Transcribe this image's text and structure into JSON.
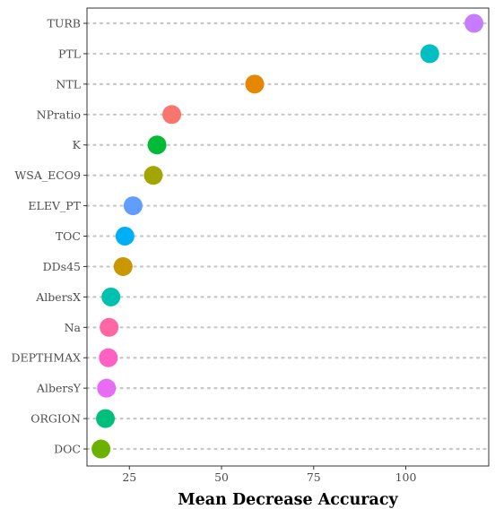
{
  "chart_data": {
    "type": "scatter",
    "xlabel": "Mean Decrease Accuracy",
    "ylabel": "",
    "title": "",
    "xlim": [
      13.5,
      122.5
    ],
    "x_ticks": [
      25,
      50,
      75,
      100
    ],
    "x_tick_labels": [
      "25",
      "50",
      "75",
      "100"
    ],
    "categories": [
      "TURB",
      "PTL",
      "NTL",
      "NPratio",
      "K",
      "WSA_ECO9",
      "ELEV_PT",
      "TOC",
      "DDs45",
      "AlbersX",
      "Na",
      "DEPTHMAX",
      "AlbersY",
      "ORGION",
      "DOC"
    ],
    "values": [
      118.5,
      106.5,
      59,
      36.5,
      32.5,
      31.5,
      26,
      23.8,
      23.3,
      20,
      19.5,
      19.3,
      18.8,
      18.5,
      17.3
    ],
    "colors": [
      "#C77CFF",
      "#00BFC4",
      "#E58700",
      "#F8766D",
      "#00BA38",
      "#A3A500",
      "#619CFF",
      "#00B0F6",
      "#C99800",
      "#00C0AF",
      "#FF67A4",
      "#FF61C3",
      "#E76BF3",
      "#00BF7D",
      "#6BB100"
    ],
    "grid": "horizontal dotted",
    "legend": "none"
  }
}
